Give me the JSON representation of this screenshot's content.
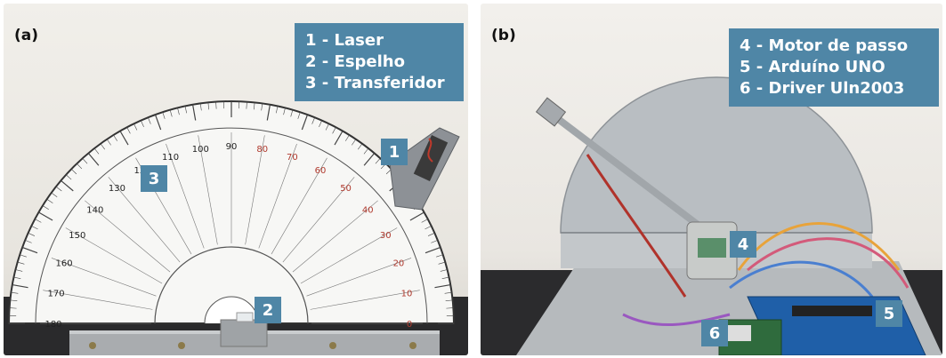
{
  "panels": {
    "a": {
      "label": "(a)",
      "legend": [
        "1 - Laser",
        "2 - Espelho",
        "3 - Transferidor"
      ],
      "markers": [
        "1",
        "2",
        "3"
      ],
      "protractor_ticks": [
        "0",
        "10",
        "20",
        "30",
        "40",
        "50",
        "60",
        "70",
        "80",
        "90",
        "100",
        "110",
        "120",
        "130",
        "140",
        "150",
        "160",
        "170",
        "180"
      ]
    },
    "b": {
      "label": "(b)",
      "legend": [
        "4 - Motor de passo",
        "5 - Arduíno UNO",
        "6 - Driver Uln2003"
      ],
      "markers": [
        "4",
        "5",
        "6"
      ]
    }
  }
}
